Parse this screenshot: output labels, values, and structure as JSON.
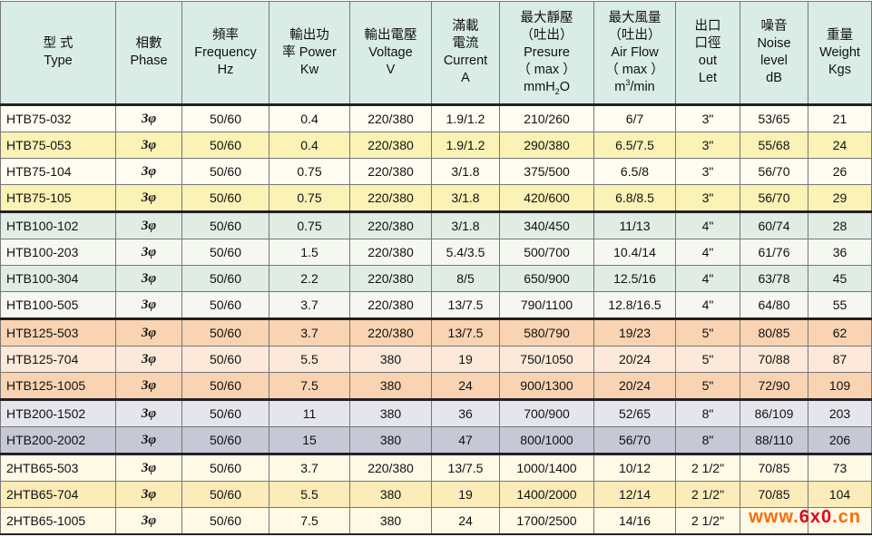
{
  "headers": [
    {
      "l1": "型 式",
      "l2": "Type"
    },
    {
      "l1": "相數",
      "l2": "Phase"
    },
    {
      "l1": "頻率",
      "l2": "Frequency",
      "l3": "Hz"
    },
    {
      "l1": "輸出功",
      "l2": "率 Power",
      "l3": "Kw"
    },
    {
      "l1": "輸出電壓",
      "l2": "Voltage",
      "l3": "V"
    },
    {
      "l1": "滿載",
      "l2": "電流",
      "l3": "Current",
      "l4": "A"
    },
    {
      "l1": "最大靜壓",
      "l2": "（吐出）",
      "l3": "Presure",
      "l4": "（ max ）",
      "l5a": "mmH",
      "l5sub": "2",
      "l5b": "O"
    },
    {
      "l1": "最大風量",
      "l2": "（吐出）",
      "l3": "Air Flow",
      "l4": "（ max ）",
      "l5a": "m",
      "l5sup": "3",
      "l5b": "/min"
    },
    {
      "l1": "出口",
      "l2": "口徑",
      "l3": "out",
      "l4": "Let"
    },
    {
      "l1": "噪音",
      "l2": "Noise",
      "l3": "level",
      "l4": "dB"
    },
    {
      "l1": "重量",
      "l2": "Weight",
      "l3": "Kgs"
    }
  ],
  "rows": [
    {
      "type": "HTB75-032",
      "phase": "3φ",
      "freq": "50/60",
      "power": "0.4",
      "voltage": "220/380",
      "current": "1.9/1.2",
      "pressure": "210/260",
      "airflow": "6/7",
      "outlet": "3\"",
      "noise": "53/65",
      "weight": "21"
    },
    {
      "type": "HTB75-053",
      "phase": "3φ",
      "freq": "50/60",
      "power": "0.4",
      "voltage": "220/380",
      "current": "1.9/1.2",
      "pressure": "290/380",
      "airflow": "6.5/7.5",
      "outlet": "3\"",
      "noise": "55/68",
      "weight": "24"
    },
    {
      "type": "HTB75-104",
      "phase": "3φ",
      "freq": "50/60",
      "power": "0.75",
      "voltage": "220/380",
      "current": "3/1.8",
      "pressure": "375/500",
      "airflow": "6.5/8",
      "outlet": "3\"",
      "noise": "56/70",
      "weight": "26"
    },
    {
      "type": "HTB75-105",
      "phase": "3φ",
      "freq": "50/60",
      "power": "0.75",
      "voltage": "220/380",
      "current": "3/1.8",
      "pressure": "420/600",
      "airflow": "6.8/8.5",
      "outlet": "3\"",
      "noise": "56/70",
      "weight": "29"
    },
    {
      "type": "HTB100-102",
      "phase": "3φ",
      "freq": "50/60",
      "power": "0.75",
      "voltage": "220/380",
      "current": "3/1.8",
      "pressure": "340/450",
      "airflow": "11/13",
      "outlet": "4\"",
      "noise": "60/74",
      "weight": "28"
    },
    {
      "type": "HTB100-203",
      "phase": "3φ",
      "freq": "50/60",
      "power": "1.5",
      "voltage": "220/380",
      "current": "5.4/3.5",
      "pressure": "500/700",
      "airflow": "10.4/14",
      "outlet": "4\"",
      "noise": "61/76",
      "weight": "36"
    },
    {
      "type": "HTB100-304",
      "phase": "3φ",
      "freq": "50/60",
      "power": "2.2",
      "voltage": "220/380",
      "current": "8/5",
      "pressure": "650/900",
      "airflow": "12.5/16",
      "outlet": "4\"",
      "noise": "63/78",
      "weight": "45"
    },
    {
      "type": "HTB100-505",
      "phase": "3φ",
      "freq": "50/60",
      "power": "3.7",
      "voltage": "220/380",
      "current": "13/7.5",
      "pressure": "790/1100",
      "airflow": "12.8/16.5",
      "outlet": "4\"",
      "noise": "64/80",
      "weight": "55"
    },
    {
      "type": "HTB125-503",
      "phase": "3φ",
      "freq": "50/60",
      "power": "3.7",
      "voltage": "220/380",
      "current": "13/7.5",
      "pressure": "580/790",
      "airflow": "19/23",
      "outlet": "5\"",
      "noise": "80/85",
      "weight": "62"
    },
    {
      "type": "HTB125-704",
      "phase": "3φ",
      "freq": "50/60",
      "power": "5.5",
      "voltage": "380",
      "current": "19",
      "pressure": "750/1050",
      "airflow": "20/24",
      "outlet": "5\"",
      "noise": "70/88",
      "weight": "87"
    },
    {
      "type": "HTB125-1005",
      "phase": "3φ",
      "freq": "50/60",
      "power": "7.5",
      "voltage": "380",
      "current": "24",
      "pressure": "900/1300",
      "airflow": "20/24",
      "outlet": "5\"",
      "noise": "72/90",
      "weight": "109"
    },
    {
      "type": "HTB200-1502",
      "phase": "3φ",
      "freq": "50/60",
      "power": "11",
      "voltage": "380",
      "current": "36",
      "pressure": "700/900",
      "airflow": "52/65",
      "outlet": "8\"",
      "noise": "86/109",
      "weight": "203"
    },
    {
      "type": "HTB200-2002",
      "phase": "3φ",
      "freq": "50/60",
      "power": "15",
      "voltage": "380",
      "current": "47",
      "pressure": "800/1000",
      "airflow": "56/70",
      "outlet": "8\"",
      "noise": "88/110",
      "weight": "206"
    },
    {
      "type": "2HTB65-503",
      "phase": "3φ",
      "freq": "50/60",
      "power": "3.7",
      "voltage": "220/380",
      "current": "13/7.5",
      "pressure": "1000/1400",
      "airflow": "10/12",
      "outlet": "2 1/2\"",
      "noise": "70/85",
      "weight": "73"
    },
    {
      "type": "2HTB65-704",
      "phase": "3φ",
      "freq": "50/60",
      "power": "5.5",
      "voltage": "380",
      "current": "19",
      "pressure": "1400/2000",
      "airflow": "12/14",
      "outlet": "2 1/2\"",
      "noise": "70/85",
      "weight": "104"
    },
    {
      "type": "2HTB65-1005",
      "phase": "3φ",
      "freq": "50/60",
      "power": "7.5",
      "voltage": "380",
      "current": "24",
      "pressure": "1700/2500",
      "airflow": "14/16",
      "outlet": "2 1/2\"",
      "noise": "",
      "weight": ""
    }
  ],
  "watermark": {
    "part1": "www.",
    "part2": "6x0",
    "part3": ".cn"
  },
  "colors": {
    "header_bg": "#d9ece6",
    "htb75": "#fbf2b6",
    "htb100": "#e0ece4",
    "htb125": "#f9d3b2",
    "htb200": "#c7c8d5",
    "2htb65": "#fcecb9",
    "watermark_orange": "#ff6a00",
    "watermark_red": "#e3001b"
  }
}
